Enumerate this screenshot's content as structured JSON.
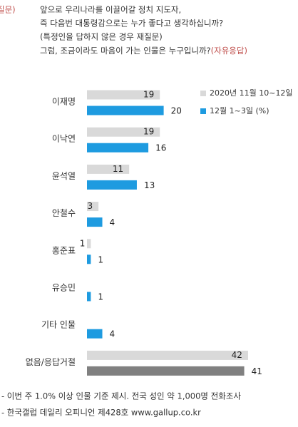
{
  "question": {
    "label": "질문)",
    "lines": [
      "앞으로 우리나라를 이끌어갈 정치 지도자,",
      "즉 다음번 대통령감으로는 누가 좋다고 생각하십니까?",
      "(특정인을 답하지 않은 경우 재질문)",
      "그럼, 조금이라도 마음이 가는 인물은 누구입니까?"
    ],
    "note": "(자유응답)"
  },
  "chart_data": {
    "type": "hbar",
    "categories": [
      "이재명",
      "이낙연",
      "윤석열",
      "안철수",
      "홍준표",
      "유승민",
      "기타 인물",
      "없음/응답거절"
    ],
    "series": [
      {
        "name": "2020년 11월 10~12일",
        "color": "#d9d9d9",
        "values": [
          19,
          19,
          11,
          3,
          1,
          null,
          null,
          42
        ]
      },
      {
        "name": "12월 1~3일 (%)",
        "color": "#1e9be0",
        "values": [
          20,
          16,
          13,
          4,
          1,
          1,
          4,
          41
        ],
        "colors": [
          "#1e9be0",
          "#1e9be0",
          "#1e9be0",
          "#1e9be0",
          "#1e9be0",
          "#1e9be0",
          "#1e9be0",
          "#808080"
        ]
      }
    ]
  },
  "footnotes": [
    "- 이번 주 1.0% 이상 인물 기준 제시. 전국 성인 약 1,000명 전화조사",
    "- 한국갤럽 데일리 오피니언 제428호 www.gallup.co.kr"
  ]
}
